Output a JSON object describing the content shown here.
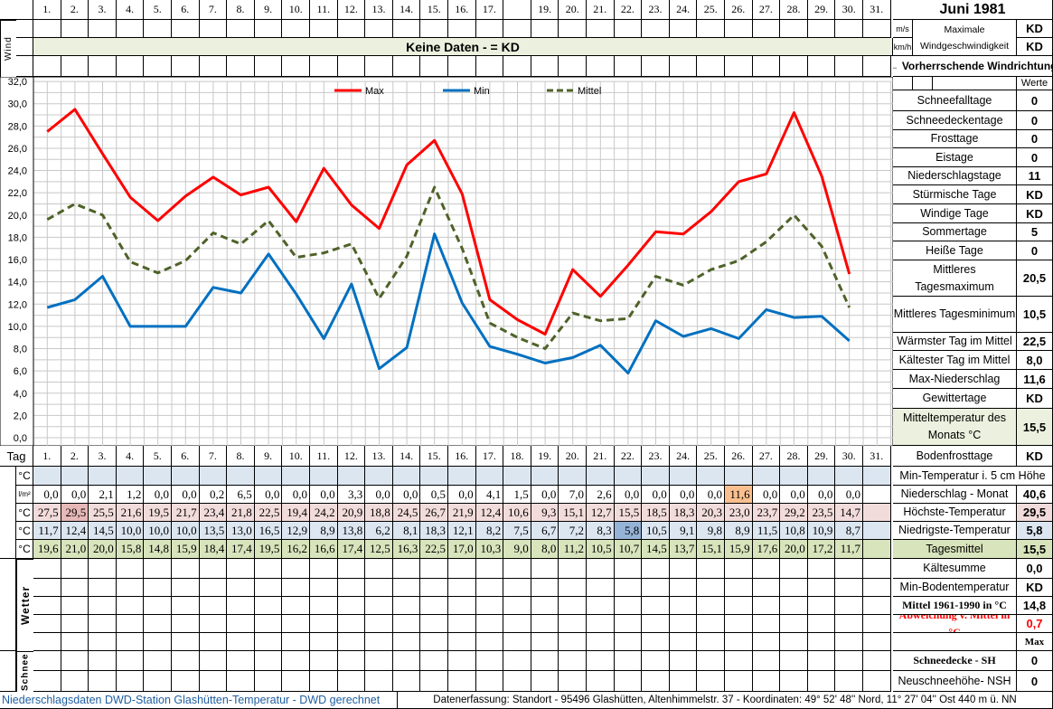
{
  "title": "Juni 1981",
  "header_days": [
    "1.",
    "2.",
    "3.",
    "4.",
    "5.",
    "6.",
    "7.",
    "8.",
    "9.",
    "10.",
    "11.",
    "12.",
    "13.",
    "14.",
    "15.",
    "16.",
    "17.",
    "",
    "19.",
    "20.",
    "21.",
    "22.",
    "23.",
    "24.",
    "25.",
    "26.",
    "27.",
    "28.",
    "29.",
    "30.",
    "31."
  ],
  "days": [
    "1.",
    "2.",
    "3.",
    "4.",
    "5.",
    "6.",
    "7.",
    "8.",
    "9.",
    "10.",
    "11.",
    "12.",
    "13.",
    "14.",
    "15.",
    "16.",
    "17.",
    "18.",
    "19.",
    "20.",
    "21.",
    "22.",
    "23.",
    "24.",
    "25.",
    "26.",
    "27.",
    "28.",
    "29.",
    "30.",
    "31."
  ],
  "wind": {
    "side_label": "Wind",
    "no_data": "Keine Daten -  = KD",
    "unit_ms": "m/s",
    "unit_kmh": "km/h",
    "max_label": "Maximale Windgeschwindigkeit",
    "max_ms": "KD",
    "max_kmh": "KD",
    "direction_label": "← Vorherrschende Windrichtung"
  },
  "werte_label": "Werte",
  "tag_label": "Tag",
  "units": {
    "temp": "°C",
    "precip": "l/m²"
  },
  "rows": {
    "precip": [
      "0,0",
      "0,0",
      "2,1",
      "1,2",
      "0,0",
      "0,0",
      "0,2",
      "6,5",
      "0,0",
      "0,0",
      "0,0",
      "3,3",
      "0,0",
      "0,0",
      "0,5",
      "0,0",
      "4,1",
      "1,5",
      "0,0",
      "7,0",
      "2,6",
      "0,0",
      "0,0",
      "0,0",
      "0,0",
      "11,6",
      "0,0",
      "0,0",
      "0,0",
      "0,0",
      ""
    ],
    "max": [
      "27,5",
      "29,5",
      "25,5",
      "21,6",
      "19,5",
      "21,7",
      "23,4",
      "21,8",
      "22,5",
      "19,4",
      "24,2",
      "20,9",
      "18,8",
      "24,5",
      "26,7",
      "21,9",
      "12,4",
      "10,6",
      "9,3",
      "15,1",
      "12,7",
      "15,5",
      "18,5",
      "18,3",
      "20,3",
      "23,0",
      "23,7",
      "29,2",
      "23,5",
      "14,7",
      ""
    ],
    "min": [
      "11,7",
      "12,4",
      "14,5",
      "10,0",
      "10,0",
      "10,0",
      "13,5",
      "13,0",
      "16,5",
      "12,9",
      "8,9",
      "13,8",
      "6,2",
      "8,1",
      "18,3",
      "12,1",
      "8,2",
      "7,5",
      "6,7",
      "7,2",
      "8,3",
      "5,8",
      "10,5",
      "9,1",
      "9,8",
      "8,9",
      "11,5",
      "10,8",
      "10,9",
      "8,7",
      ""
    ],
    "mean": [
      "19,6",
      "21,0",
      "20,0",
      "15,8",
      "14,8",
      "15,9",
      "18,4",
      "17,4",
      "19,5",
      "16,2",
      "16,6",
      "17,4",
      "12,5",
      "16,3",
      "22,5",
      "17,0",
      "10,3",
      "9,0",
      "8,0",
      "11,2",
      "10,5",
      "10,7",
      "14,5",
      "13,7",
      "15,1",
      "15,9",
      "17,6",
      "20,0",
      "17,2",
      "11,7",
      ""
    ]
  },
  "side_labels": {
    "wetter": "Wetter",
    "schnee": "Schnee"
  },
  "stats": [
    {
      "label": "Schneefalltage",
      "value": "0"
    },
    {
      "label": "Schneedeckentage",
      "value": "0"
    },
    {
      "label": "Frosttage",
      "value": "0"
    },
    {
      "label": "Eistage",
      "value": "0"
    },
    {
      "label": "Niederschlagstage",
      "value": "11"
    },
    {
      "label": "Stürmische Tage",
      "value": "KD"
    },
    {
      "label": "Windige Tage",
      "value": "KD"
    },
    {
      "label": "Sommertage",
      "value": "5"
    },
    {
      "label": "Heiße Tage",
      "value": "0"
    },
    {
      "label": "Mittleres Tagesmaximum",
      "value": "20,5"
    },
    {
      "label": "Mittleres Tagesminimum",
      "value": "10,5"
    },
    {
      "label": "Wärmster Tag im Mittel",
      "value": "22,5"
    },
    {
      "label": "Kältester Tag im Mittel",
      "value": "8,0"
    },
    {
      "label": "Max-Niederschlag",
      "value": "11,6"
    },
    {
      "label": "Gewittertage",
      "value": "KD"
    },
    {
      "label": "Mitteltemperatur des Monats °C",
      "value": "15,5"
    },
    {
      "label": "Bodenfrosttage",
      "value": "KD"
    },
    {
      "label": "Min-Temperatur i. 5 cm Höhe",
      "value": ""
    },
    {
      "label": "Niederschlag - Monat",
      "value": "40,6"
    },
    {
      "label": "Höchste-Temperatur",
      "value": "29,5"
    },
    {
      "label": "Niedrigste-Temperatur",
      "value": "5,8"
    },
    {
      "label": "Tagesmittel",
      "value": "15,5"
    },
    {
      "label": "Kältesumme",
      "value": "0,0"
    },
    {
      "label": "Min-Bodentemperatur",
      "value": "KD"
    },
    {
      "label": "Mittel 1961-1990 in °C",
      "value": "14,8"
    },
    {
      "label": "Abweichung v. Mittel in °C",
      "value": "0,7"
    },
    {
      "label": "",
      "value": "Max"
    },
    {
      "label": "Schneedecke -   SH",
      "value": "0"
    },
    {
      "label": "Neuschneehöhe- NSH",
      "value": "0"
    }
  ],
  "footer": {
    "left": "Niederschlagsdaten DWD-Station Glashütten-Temperatur -  DWD gerechnet",
    "right": "Datenerfassung:  Standort -  95496  Glashütten, Altenhimmelstr. 37 - Koordinaten:  49° 52' 48'' Nord,   11° 27' 04'' Ost   440 m ü. NN"
  },
  "colors": {
    "max": "#ff0000",
    "min": "#0070c0",
    "mean": "#4f6228",
    "max_bg": "#f2dcdb",
    "max_hi": "#e6b8b7",
    "min_bg": "#dce6f1",
    "min_hi": "#95b3d7",
    "mean_bg": "#d8e4bc",
    "precip_hi": "#fabf8f"
  },
  "chart_data": {
    "type": "line",
    "x": [
      1,
      2,
      3,
      4,
      5,
      6,
      7,
      8,
      9,
      10,
      11,
      12,
      13,
      14,
      15,
      16,
      17,
      18,
      19,
      20,
      21,
      22,
      23,
      24,
      25,
      26,
      27,
      28,
      29,
      30
    ],
    "series": [
      {
        "name": "Max",
        "values": [
          27.5,
          29.5,
          25.5,
          21.6,
          19.5,
          21.7,
          23.4,
          21.8,
          22.5,
          19.4,
          24.2,
          20.9,
          18.8,
          24.5,
          26.7,
          21.9,
          12.4,
          10.6,
          9.3,
          15.1,
          12.7,
          15.5,
          18.5,
          18.3,
          20.3,
          23.0,
          23.7,
          29.2,
          23.5,
          14.7
        ]
      },
      {
        "name": "Min",
        "values": [
          11.7,
          12.4,
          14.5,
          10.0,
          10.0,
          10.0,
          13.5,
          13.0,
          16.5,
          12.9,
          8.9,
          13.8,
          6.2,
          8.1,
          18.3,
          12.1,
          8.2,
          7.5,
          6.7,
          7.2,
          8.3,
          5.8,
          10.5,
          9.1,
          9.8,
          8.9,
          11.5,
          10.8,
          10.9,
          8.7
        ]
      },
      {
        "name": "Mittel",
        "values": [
          19.6,
          21.0,
          20.0,
          15.8,
          14.8,
          15.9,
          18.4,
          17.4,
          19.5,
          16.2,
          16.6,
          17.4,
          12.5,
          16.3,
          22.5,
          17.0,
          10.3,
          9.0,
          8.0,
          11.2,
          10.5,
          10.7,
          14.5,
          13.7,
          15.1,
          15.9,
          17.6,
          20.0,
          17.2,
          11.7
        ]
      }
    ],
    "yticks": [
      "0,0",
      "2,0",
      "4,0",
      "6,0",
      "8,0",
      "10,0",
      "12,0",
      "14,0",
      "16,0",
      "18,0",
      "20,0",
      "22,0",
      "24,0",
      "26,0",
      "28,0",
      "30,0",
      "32,0"
    ],
    "ylim": [
      0,
      32
    ],
    "legend": "top-center",
    "grid": true
  }
}
